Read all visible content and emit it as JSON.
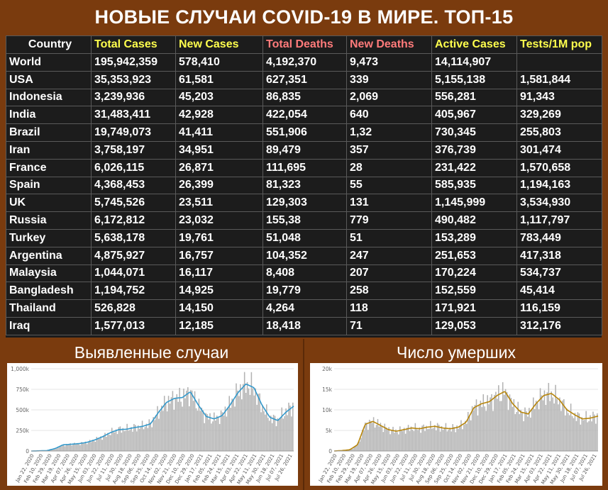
{
  "title": "НОВЫЕ СЛУЧАИ COVID-19 В МИРЕ. ТОП-15",
  "table": {
    "headers": [
      "Country",
      "Total Cases",
      "New Cases",
      "Total Deaths",
      "New Deaths",
      "Active Cases",
      "Tests/1M pop"
    ],
    "header_colors": [
      "#ffffff",
      "#ffff4d",
      "#ffff4d",
      "#ff7b7b",
      "#ff7b7b",
      "#ffff4d",
      "#ffff4d"
    ],
    "rows": [
      [
        "World",
        "195,942,359",
        "578,410",
        "4,192,370",
        "9,473",
        "14,114,907",
        ""
      ],
      [
        "USA",
        "35,353,923",
        "61,581",
        "627,351",
        "339",
        "5,155,138",
        "1,581,844"
      ],
      [
        "Indonesia",
        "3,239,936",
        "45,203",
        "86,835",
        "2,069",
        "556,281",
        "91,343"
      ],
      [
        "India",
        "31,483,411",
        "42,928",
        "422,054",
        "640",
        "405,967",
        "329,269"
      ],
      [
        "Brazil",
        "19,749,073",
        "41,411",
        "551,906",
        "1,32",
        "730,345",
        "255,803"
      ],
      [
        "Iran",
        "3,758,197",
        "34,951",
        "89,479",
        "357",
        "376,739",
        "301,474"
      ],
      [
        "France",
        "6,026,115",
        "26,871",
        "111,695",
        "28",
        "231,422",
        "1,570,658"
      ],
      [
        "Spain",
        "4,368,453",
        "26,399",
        "81,323",
        "55",
        "585,935",
        "1,194,163"
      ],
      [
        "UK",
        "5,745,526",
        "23,511",
        "129,303",
        "131",
        "1,145,999",
        "3,534,930"
      ],
      [
        "Russia",
        "6,172,812",
        "23,032",
        "155,38",
        "779",
        "490,482",
        "1,117,797"
      ],
      [
        "Turkey",
        "5,638,178",
        "19,761",
        "51,048",
        "51",
        "153,289",
        "783,449"
      ],
      [
        "Argentina",
        "4,875,927",
        "16,757",
        "104,352",
        "247",
        "251,653",
        "417,318"
      ],
      [
        "Malaysia",
        "1,044,071",
        "16,117",
        "8,408",
        "207",
        "170,224",
        "534,737"
      ],
      [
        "Bangladesh",
        "1,194,752",
        "14,925",
        "19,779",
        "258",
        "152,559",
        "45,414"
      ],
      [
        "Thailand",
        "526,828",
        "14,150",
        "4,264",
        "118",
        "171,921",
        "116,159"
      ],
      [
        "Iraq",
        "1,577,013",
        "12,185",
        "18,418",
        "71",
        "129,053",
        "312,176"
      ]
    ]
  },
  "chart_data": [
    {
      "type": "bar",
      "title": "Выявленные случаи",
      "bar_color": "#b3b3b3",
      "line_color": "#3399cc",
      "ylim": [
        0,
        1000000
      ],
      "yticks": [
        0,
        250000,
        500000,
        750000,
        1000000
      ],
      "ytick_labels": [
        "0",
        "250k",
        "500k",
        "750k",
        "1,000k"
      ],
      "xtick_labels": [
        "Jan 22, 2020",
        "Feb 10, 2020",
        "Feb 29, 2020",
        "Mar 19, 2020",
        "Apr 07, 2020",
        "Apr 26, 2020",
        "May 15, 2020",
        "Jun 03, 2020",
        "Jun 22, 2020",
        "Jul 11, 2020",
        "Jul 30, 2020",
        "Aug 18, 2020",
        "Sep 06, 2020",
        "Sep 25, 2020",
        "Oct 14, 2020",
        "Nov 02, 2020",
        "Nov 21, 2020",
        "Dec 10, 2020",
        "Dec 29, 2020",
        "Jan 17, 2021",
        "Feb 05, 2021",
        "Feb 24, 2021",
        "Mar 15, 2021",
        "Apr 03, 2021",
        "Apr 22, 2021",
        "May 11, 2021",
        "May 30, 2021",
        "Jun 18, 2021",
        "Jul 07, 2021",
        "Jul 26, 2021"
      ],
      "trend": [
        0,
        2000,
        5000,
        30000,
        75000,
        82000,
        90000,
        105000,
        135000,
        175000,
        225000,
        260000,
        265000,
        285000,
        300000,
        330000,
        470000,
        590000,
        640000,
        650000,
        720000,
        560000,
        420000,
        390000,
        430000,
        560000,
        710000,
        815000,
        770000,
        560000,
        410000,
        370000,
        470000,
        545000
      ]
    },
    {
      "type": "bar",
      "title": "Число умерших",
      "bar_color": "#b3b3b3",
      "line_color": "#b8860b",
      "ylim": [
        0,
        20000
      ],
      "yticks": [
        0,
        5000,
        10000,
        15000,
        20000
      ],
      "ytick_labels": [
        "0",
        "5k",
        "10k",
        "15k",
        "20k"
      ],
      "xtick_labels": [
        "Jan 22, 2020",
        "Feb 10, 2020",
        "Feb 29, 2020",
        "Mar 19, 2020",
        "Apr 07, 2020",
        "Apr 26, 2020",
        "May 15, 2020",
        "Jun 03, 2020",
        "Jun 22, 2020",
        "Jul 11, 2020",
        "Jul 30, 2020",
        "Aug 18, 2020",
        "Sep 06, 2020",
        "Sep 25, 2020",
        "Oct 14, 2020",
        "Nov 02, 2020",
        "Nov 21, 2020",
        "Dec 10, 2020",
        "Dec 29, 2020",
        "Jan 17, 2021",
        "Feb 05, 2021",
        "Feb 24, 2021",
        "Mar 15, 2021",
        "Apr 03, 2021",
        "Apr 22, 2021",
        "May 11, 2021",
        "May 30, 2021",
        "Jun 18, 2021",
        "Jul 07, 2021",
        "Jul 26, 2021"
      ],
      "trend": [
        0,
        100,
        300,
        1500,
        6500,
        7200,
        6200,
        5200,
        4800,
        5200,
        5600,
        5400,
        5800,
        6000,
        5600,
        5400,
        5800,
        7000,
        10500,
        11500,
        12000,
        13500,
        14500,
        11500,
        9500,
        9000,
        11500,
        13500,
        14000,
        12500,
        10000,
        8800,
        7800,
        8000,
        8500
      ]
    }
  ]
}
